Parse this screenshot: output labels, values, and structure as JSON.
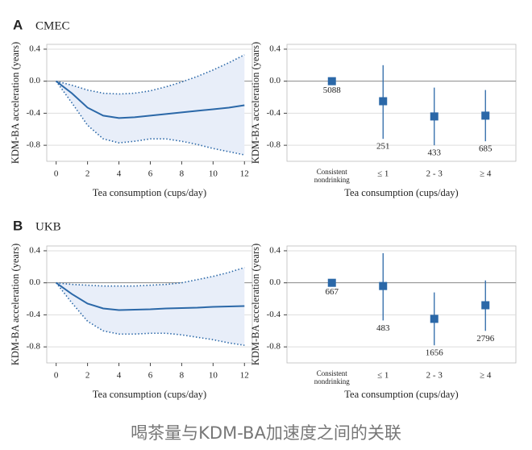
{
  "panels": [
    {
      "letter": "A",
      "name": "CMEC"
    },
    {
      "letter": "B",
      "name": "UKB"
    }
  ],
  "caption": "喝茶量与KDM-BA加速度之间的关联",
  "chart_data": [
    {
      "type": "line",
      "xlabel": "Tea consumption (cups/day)",
      "ylabel": "KDM-BA acceleration (years)",
      "x": [
        0,
        1,
        2,
        3,
        4,
        5,
        6,
        7,
        8,
        9,
        10,
        11,
        12
      ],
      "series": [
        {
          "color": "#2b68a8",
          "style": "solid",
          "values": [
            0,
            -0.15,
            -0.33,
            -0.43,
            -0.46,
            -0.45,
            -0.43,
            -0.41,
            -0.39,
            -0.37,
            -0.35,
            -0.33,
            -0.3
          ]
        },
        {
          "color": "#2b68a8",
          "style": "dotted",
          "values": [
            0,
            -0.05,
            -0.11,
            -0.15,
            -0.16,
            -0.15,
            -0.12,
            -0.07,
            -0.01,
            0.06,
            0.14,
            0.23,
            0.33
          ]
        },
        {
          "color": "#2b68a8",
          "style": "dotted",
          "values": [
            0,
            -0.27,
            -0.55,
            -0.72,
            -0.77,
            -0.75,
            -0.72,
            -0.72,
            -0.75,
            -0.79,
            -0.84,
            -0.88,
            -0.92
          ]
        }
      ],
      "band": {
        "color": "#e8eef9"
      },
      "xlim": [
        -0.6,
        12.5
      ],
      "xticks": [
        0,
        2,
        4,
        6,
        8,
        10,
        12
      ],
      "ylim": [
        -1.0,
        0.46
      ],
      "yticks": [
        0.4,
        {
          "value": 0,
          "label": "0.0"
        },
        -0.4,
        -0.8
      ],
      "grid": true
    },
    {
      "type": "errorbar",
      "xlabel": "Tea consumption (cups/day)",
      "ylabel": "KDM-BA acceleration (years)",
      "categories": [
        "Consistent nondrinking",
        "≤ 1",
        "2 - 3",
        "≥ 4"
      ],
      "values": [
        0,
        -0.25,
        -0.44,
        -0.43
      ],
      "lower": [
        null,
        -0.72,
        -0.8,
        -0.75
      ],
      "upper": [
        null,
        0.2,
        -0.08,
        -0.11
      ],
      "counts": [
        5088,
        251,
        433,
        685
      ],
      "color": "#2b68a8",
      "ylim": [
        -1.0,
        0.46
      ],
      "yticks": [
        0.4,
        {
          "value": 0,
          "label": "0.0"
        },
        -0.4,
        -0.8
      ],
      "grid": true
    },
    {
      "type": "line",
      "xlabel": "Tea consumption (cups/day)",
      "ylabel": "KDM-BA acceleration (years)",
      "x": [
        0,
        1,
        2,
        3,
        4,
        5,
        6,
        7,
        8,
        9,
        10,
        11,
        12
      ],
      "series": [
        {
          "color": "#2b68a8",
          "style": "solid",
          "values": [
            0,
            -0.14,
            -0.26,
            -0.32,
            -0.34,
            -0.335,
            -0.33,
            -0.32,
            -0.315,
            -0.31,
            -0.3,
            -0.295,
            -0.29
          ]
        },
        {
          "color": "#2b68a8",
          "style": "dotted",
          "values": [
            0,
            -0.02,
            -0.03,
            -0.04,
            -0.04,
            -0.04,
            -0.03,
            -0.02,
            0,
            0.04,
            0.08,
            0.13,
            0.19
          ]
        },
        {
          "color": "#2b68a8",
          "style": "dotted",
          "values": [
            0,
            -0.25,
            -0.48,
            -0.6,
            -0.64,
            -0.64,
            -0.63,
            -0.63,
            -0.65,
            -0.68,
            -0.71,
            -0.75,
            -0.78
          ]
        }
      ],
      "band": {
        "color": "#e8eef9"
      },
      "xlim": [
        -0.6,
        12.5
      ],
      "xticks": [
        0,
        2,
        4,
        6,
        8,
        10,
        12
      ],
      "ylim": [
        -1.0,
        0.46
      ],
      "yticks": [
        0.4,
        {
          "value": 0,
          "label": "0.0"
        },
        -0.4,
        -0.8
      ],
      "grid": true
    },
    {
      "type": "errorbar",
      "xlabel": "Tea consumption (cups/day)",
      "ylabel": "KDM-BA acceleration (years)",
      "categories": [
        "Consistent nondrinking",
        "≤ 1",
        "2 - 3",
        "≥ 4"
      ],
      "values": [
        0,
        -0.04,
        -0.45,
        -0.28
      ],
      "lower": [
        null,
        -0.47,
        -0.78,
        -0.6
      ],
      "upper": [
        null,
        0.37,
        -0.12,
        0.03
      ],
      "counts": [
        667,
        483,
        1656,
        2796
      ],
      "color": "#2b68a8",
      "ylim": [
        -1.0,
        0.46
      ],
      "yticks": [
        0.4,
        {
          "value": 0,
          "label": "0.0"
        },
        -0.4,
        -0.8
      ],
      "grid": true
    }
  ]
}
